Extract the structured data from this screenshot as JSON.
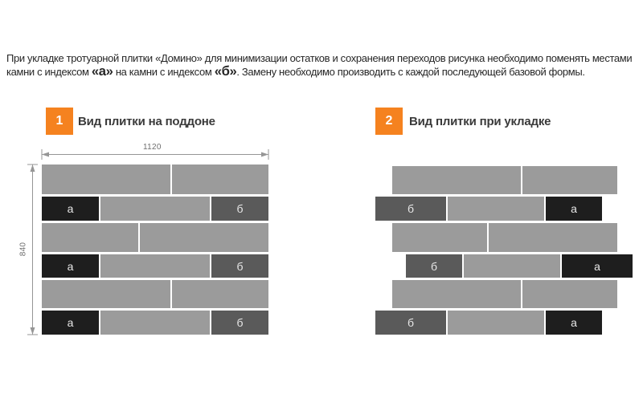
{
  "intro": {
    "line1": "При укладке тротуарной плитки «Домино» для минимизации остатков и сохранения переходов рисунка необходимо поменять местами",
    "line2_part1": "камни с индексом ",
    "line2_emph1": "«а»",
    "line2_part2": " на камни с индексом ",
    "line2_emph2": "«б»",
    "line2_part3": ". Замену необходимо производить с каждой последующей базовой формы."
  },
  "sections": [
    {
      "number": "1",
      "title": "Вид плитки на поддоне"
    },
    {
      "number": "2",
      "title": "Вид плитки при укладке"
    }
  ],
  "dimensions": {
    "width_label": "1120",
    "height_label": "840"
  },
  "colors": {
    "accent_orange": "#F5821F",
    "tile_gray": "#9B9B9B",
    "tile_b": "#5A5A5A",
    "tile_a": "#1E1E1E",
    "tile_label": "#E8E8E8",
    "dimension_line": "#969696",
    "text": "#262626"
  },
  "pallet_diagram": {
    "rows": [
      {
        "h": 37,
        "offset": 0,
        "tiles": [
          {
            "t": "gray",
            "w": 160
          },
          {
            "t": "gray",
            "w": 120
          }
        ]
      },
      {
        "h": 30,
        "offset": 0,
        "tiles": [
          {
            "t": "a",
            "w": 71,
            "label": "а"
          },
          {
            "t": "gray",
            "w": 136
          },
          {
            "t": "b",
            "w": 71,
            "label": "б"
          }
        ]
      },
      {
        "h": 36,
        "offset": 0,
        "tiles": [
          {
            "t": "gray",
            "w": 120
          },
          {
            "t": "gray",
            "w": 160
          }
        ]
      },
      {
        "h": 29,
        "offset": 0,
        "tiles": [
          {
            "t": "a",
            "w": 71,
            "label": "а"
          },
          {
            "t": "gray",
            "w": 136
          },
          {
            "t": "b",
            "w": 71,
            "label": "б"
          }
        ]
      },
      {
        "h": 35,
        "offset": 0,
        "tiles": [
          {
            "t": "gray",
            "w": 160
          },
          {
            "t": "gray",
            "w": 120
          }
        ]
      },
      {
        "h": 30,
        "offset": 0,
        "tiles": [
          {
            "t": "a",
            "w": 71,
            "label": "а"
          },
          {
            "t": "gray",
            "w": 136
          },
          {
            "t": "b",
            "w": 71,
            "label": "б"
          }
        ]
      }
    ]
  },
  "laying_diagram": {
    "rows": [
      {
        "h": 35,
        "offset": 21,
        "tiles": [
          {
            "t": "gray",
            "w": 160
          },
          {
            "t": "gray",
            "w": 118
          }
        ]
      },
      {
        "h": 30,
        "offset": 0,
        "tiles": [
          {
            "t": "b",
            "w": 88,
            "label": "б"
          },
          {
            "t": "gray",
            "w": 120
          },
          {
            "t": "a",
            "w": 70,
            "label": "а"
          }
        ]
      },
      {
        "h": 36,
        "offset": 21,
        "tiles": [
          {
            "t": "gray",
            "w": 118
          },
          {
            "t": "gray",
            "w": 160
          }
        ]
      },
      {
        "h": 29,
        "offset": 38,
        "tiles": [
          {
            "t": "b",
            "w": 70,
            "label": "б"
          },
          {
            "t": "gray",
            "w": 120
          },
          {
            "t": "a",
            "w": 88,
            "label": "а"
          }
        ]
      },
      {
        "h": 35,
        "offset": 21,
        "tiles": [
          {
            "t": "gray",
            "w": 160
          },
          {
            "t": "gray",
            "w": 118
          }
        ]
      },
      {
        "h": 30,
        "offset": 0,
        "tiles": [
          {
            "t": "b",
            "w": 88,
            "label": "б"
          },
          {
            "t": "gray",
            "w": 120
          },
          {
            "t": "a",
            "w": 70,
            "label": "а"
          }
        ]
      }
    ]
  }
}
